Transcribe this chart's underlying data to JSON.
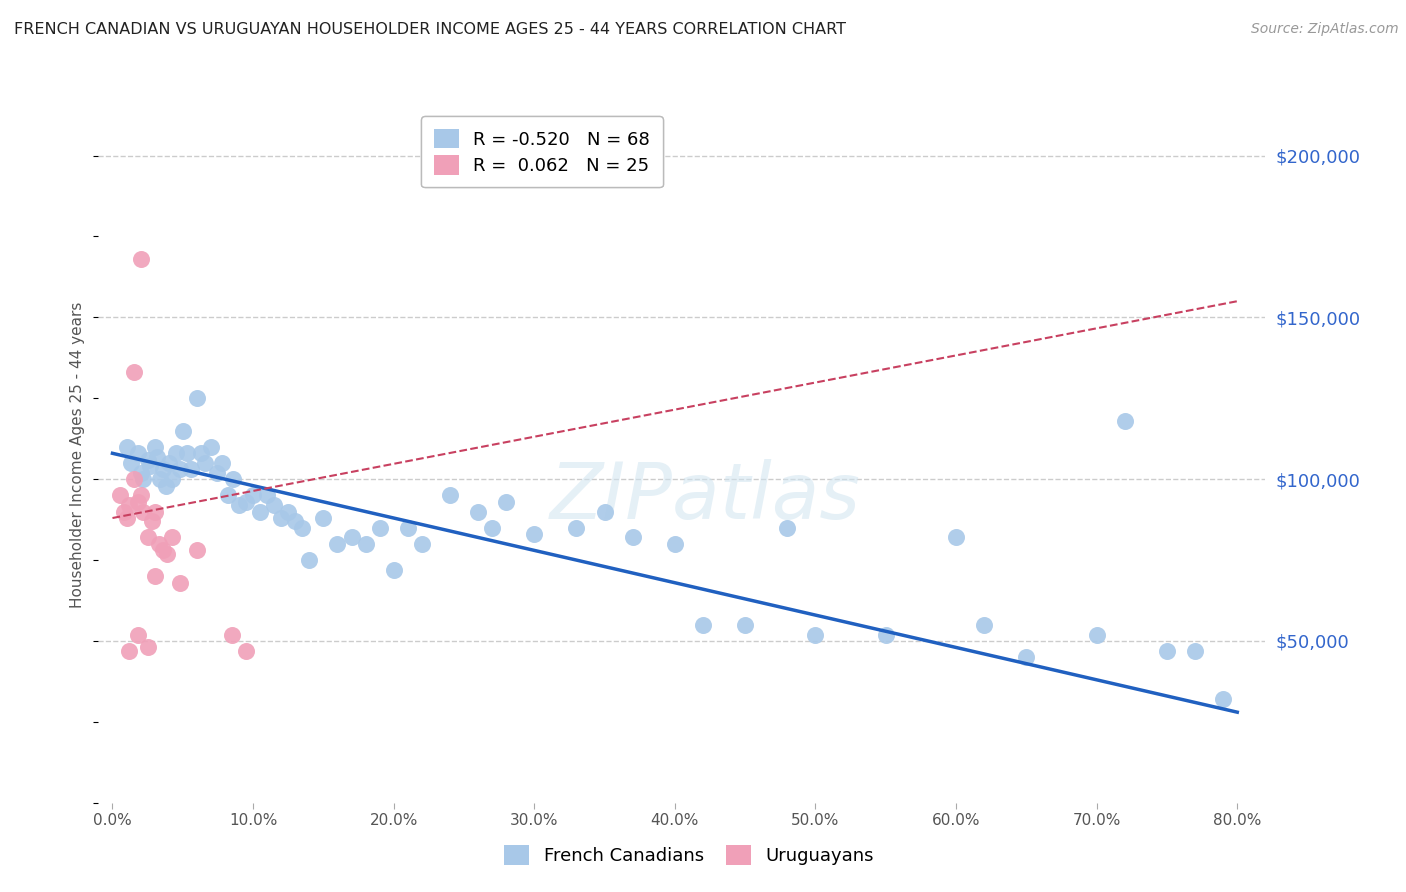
{
  "title": "FRENCH CANADIAN VS URUGUAYAN HOUSEHOLDER INCOME AGES 25 - 44 YEARS CORRELATION CHART",
  "source": "Source: ZipAtlas.com",
  "ylabel": "Householder Income Ages 25 - 44 years",
  "xlabel_ticks": [
    "0.0%",
    "10.0%",
    "20.0%",
    "30.0%",
    "40.0%",
    "50.0%",
    "60.0%",
    "70.0%",
    "80.0%"
  ],
  "xlabel_vals": [
    0,
    10,
    20,
    30,
    40,
    50,
    60,
    70,
    80
  ],
  "ytick_vals": [
    0,
    50000,
    100000,
    150000,
    200000
  ],
  "ytick_labels": [
    "",
    "$50,000",
    "$100,000",
    "$150,000",
    "$200,000"
  ],
  "ylim": [
    0,
    215000
  ],
  "xlim": [
    -1,
    82
  ],
  "french_R": -0.52,
  "french_N": 68,
  "uruguayan_R": 0.062,
  "uruguayan_N": 25,
  "french_color": "#a8c8e8",
  "french_line_color": "#2060c0",
  "uruguayan_color": "#f0a0b8",
  "uruguayan_line_color": "#c84060",
  "background_color": "#ffffff",
  "grid_color": "#cccccc",
  "title_color": "#333333",
  "axis_label_color": "#555555",
  "right_tick_color": "#3366cc",
  "french_trendline": [
    108000,
    28000
  ],
  "uruguayan_trendline": [
    88000,
    155000
  ],
  "french_x": [
    1.0,
    1.3,
    1.8,
    2.0,
    2.2,
    2.5,
    2.7,
    3.0,
    3.2,
    3.4,
    3.6,
    3.8,
    4.0,
    4.2,
    4.5,
    4.8,
    5.0,
    5.3,
    5.6,
    6.0,
    6.3,
    6.6,
    7.0,
    7.4,
    7.8,
    8.2,
    8.6,
    9.0,
    9.5,
    10.0,
    10.5,
    11.0,
    11.5,
    12.0,
    12.5,
    13.0,
    13.5,
    14.0,
    15.0,
    16.0,
    17.0,
    18.0,
    19.0,
    20.0,
    21.0,
    22.0,
    24.0,
    26.0,
    27.0,
    28.0,
    30.0,
    33.0,
    35.0,
    37.0,
    40.0,
    42.0,
    45.0,
    48.0,
    50.0,
    55.0,
    60.0,
    62.0,
    65.0,
    70.0,
    72.0,
    75.0,
    77.0,
    79.0
  ],
  "french_y": [
    110000,
    105000,
    108000,
    102000,
    100000,
    106000,
    104000,
    110000,
    107000,
    100000,
    103000,
    98000,
    105000,
    100000,
    108000,
    103000,
    115000,
    108000,
    103000,
    125000,
    108000,
    105000,
    110000,
    102000,
    105000,
    95000,
    100000,
    92000,
    93000,
    95000,
    90000,
    95000,
    92000,
    88000,
    90000,
    87000,
    85000,
    75000,
    88000,
    80000,
    82000,
    80000,
    85000,
    72000,
    85000,
    80000,
    95000,
    90000,
    85000,
    93000,
    83000,
    85000,
    90000,
    82000,
    80000,
    55000,
    55000,
    85000,
    52000,
    52000,
    82000,
    55000,
    45000,
    52000,
    118000,
    47000,
    47000,
    32000
  ],
  "uruguayan_x": [
    0.5,
    0.8,
    1.0,
    1.2,
    1.5,
    1.8,
    2.0,
    2.2,
    2.5,
    2.8,
    3.0,
    3.3,
    3.6,
    3.9,
    4.2,
    1.2,
    1.8,
    2.5,
    4.8,
    6.0,
    8.5,
    9.5,
    3.0,
    1.5,
    2.0
  ],
  "uruguayan_y": [
    95000,
    90000,
    88000,
    92000,
    100000,
    93000,
    95000,
    90000,
    82000,
    87000,
    90000,
    80000,
    78000,
    77000,
    82000,
    47000,
    52000,
    48000,
    68000,
    78000,
    52000,
    47000,
    70000,
    133000,
    168000
  ]
}
